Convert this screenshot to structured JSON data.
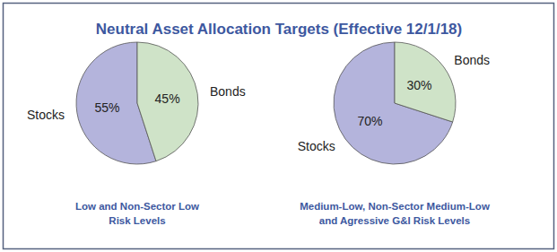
{
  "title": "Neutral Asset Allocation Targets (Effective 12/1/18)",
  "chart_data": [
    {
      "type": "pie",
      "title": "Low and Non-Sector Low\nRisk Levels",
      "categories": [
        "Stocks",
        "Bonds"
      ],
      "values": [
        55,
        45
      ],
      "value_labels": [
        "55%",
        "45%"
      ],
      "colors": [
        "#b4b4dc",
        "#cfe3c8"
      ],
      "data_labels": true
    },
    {
      "type": "pie",
      "title": "Medium-Low, Non-Sector Medium-Low\nand Agressive G&I Risk Levels",
      "categories": [
        "Stocks",
        "Bonds"
      ],
      "values": [
        70,
        30
      ],
      "value_labels": [
        "70%",
        "30%"
      ],
      "colors": [
        "#b4b4dc",
        "#cfe3c8"
      ],
      "data_labels": true
    }
  ]
}
